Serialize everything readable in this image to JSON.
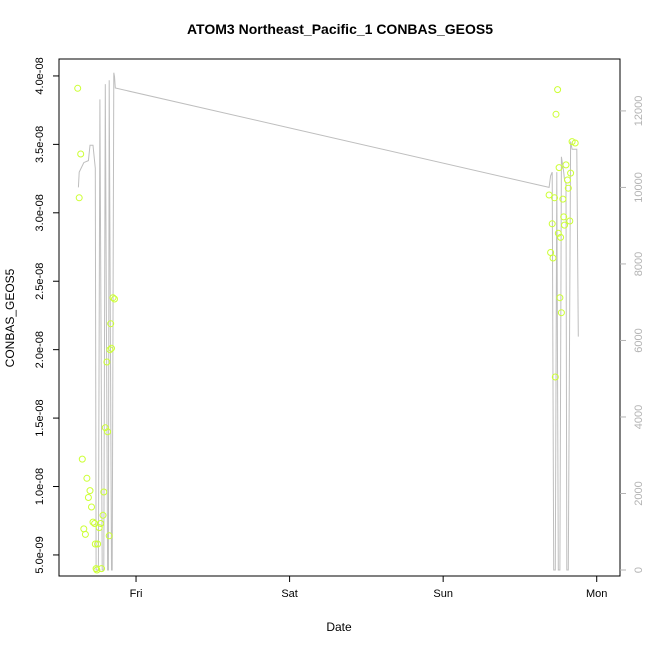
{
  "chart_data": {
    "type": "scatter",
    "title": "ATOM3 Northeast_Pacific_1 CONBAS_GEOS5",
    "xlabel": "Date",
    "ylabel": "CONBAS_GEOS5",
    "x_ticks": [
      {
        "label": "Fri",
        "day": 1
      },
      {
        "label": "Sat",
        "day": 2
      },
      {
        "label": "Sun",
        "day": 3
      },
      {
        "label": "Mon",
        "day": 4
      }
    ],
    "xlim": [
      0.57,
      4.08
    ],
    "y_left": {
      "ylim": [
        3.9e-09,
        4.08e-08
      ],
      "ticks": [
        5e-09,
        1e-08,
        1.5e-08,
        2e-08,
        2.5e-08,
        3e-08,
        3.5e-08,
        4e-08
      ],
      "tick_labels": [
        "5.0e-09",
        "1.0e-08",
        "1.5e-08",
        "2.0e-08",
        "2.5e-08",
        "3.0e-08",
        "3.5e-08",
        "4.0e-08"
      ]
    },
    "y_right": {
      "ylim": [
        0,
        13200
      ],
      "ticks": [
        0,
        2000,
        4000,
        6000,
        8000,
        10000,
        12000
      ],
      "tick_labels": [
        "0",
        "2000",
        "4000",
        "6000",
        "8000",
        "10000",
        "12000"
      ]
    },
    "colors": {
      "points": "#ccff33",
      "altitude_line": "#bebebe",
      "axes": "#000000",
      "right_axis": "#b3b3b3"
    },
    "series": [
      {
        "axis": "left",
        "marker": "open-circle",
        "points": [
          [
            0.62,
            3.91e-08
          ],
          [
            0.63,
            3.11e-08
          ],
          [
            0.64,
            3.43e-08
          ],
          [
            0.65,
            1.2e-08
          ],
          [
            0.66,
            6.9e-09
          ],
          [
            0.67,
            6.5e-09
          ],
          [
            0.68,
            1.06e-08
          ],
          [
            0.69,
            9.2e-09
          ],
          [
            0.7,
            9.7e-09
          ],
          [
            0.71,
            8.5e-09
          ],
          [
            0.72,
            7.4e-09
          ],
          [
            0.73,
            7.3e-09
          ],
          [
            0.735,
            5.8e-09
          ],
          [
            0.74,
            4e-09
          ],
          [
            0.745,
            3.9e-09
          ],
          [
            0.75,
            5.8e-09
          ],
          [
            0.76,
            7e-09
          ],
          [
            0.77,
            7.3e-09
          ],
          [
            0.775,
            4e-09
          ],
          [
            0.785,
            7.9e-09
          ],
          [
            0.79,
            9.6e-09
          ],
          [
            0.8,
            1.43e-08
          ],
          [
            0.81,
            1.91e-08
          ],
          [
            0.815,
            1.4e-08
          ],
          [
            0.825,
            6.4e-09
          ],
          [
            0.83,
            2e-08
          ],
          [
            0.835,
            2.19e-08
          ],
          [
            0.84,
            2.01e-08
          ],
          [
            0.85,
            2.38e-08
          ],
          [
            0.86,
            2.37e-08
          ],
          [
            3.69,
            3.13e-08
          ],
          [
            3.7,
            2.71e-08
          ],
          [
            3.71,
            2.92e-08
          ],
          [
            3.715,
            2.67e-08
          ],
          [
            3.725,
            3.11e-08
          ],
          [
            3.73,
            1.8e-08
          ],
          [
            3.735,
            3.72e-08
          ],
          [
            3.745,
            3.9e-08
          ],
          [
            3.75,
            2.85e-08
          ],
          [
            3.755,
            3.33e-08
          ],
          [
            3.76,
            2.38e-08
          ],
          [
            3.765,
            2.82e-08
          ],
          [
            3.77,
            2.27e-08
          ],
          [
            3.78,
            3.1e-08
          ],
          [
            3.785,
            2.97e-08
          ],
          [
            3.79,
            2.91e-08
          ],
          [
            3.8,
            3.35e-08
          ],
          [
            3.81,
            3.24e-08
          ],
          [
            3.815,
            3.18e-08
          ],
          [
            3.825,
            2.94e-08
          ],
          [
            3.83,
            3.29e-08
          ],
          [
            3.84,
            3.52e-08
          ],
          [
            3.86,
            3.51e-08
          ]
        ]
      },
      {
        "axis": "right",
        "marker": "line",
        "points": [
          [
            0.625,
            10000
          ],
          [
            0.63,
            10400
          ],
          [
            0.66,
            10650
          ],
          [
            0.69,
            10700
          ],
          [
            0.7,
            11100
          ],
          [
            0.72,
            11100
          ],
          [
            0.735,
            10500
          ],
          [
            0.74,
            0
          ],
          [
            0.755,
            0
          ],
          [
            0.765,
            12300
          ],
          [
            0.78,
            0
          ],
          [
            0.79,
            0
          ],
          [
            0.8,
            12700
          ],
          [
            0.815,
            0
          ],
          [
            0.82,
            0
          ],
          [
            0.825,
            12800
          ],
          [
            0.84,
            0
          ],
          [
            0.845,
            0
          ],
          [
            0.855,
            13000
          ],
          [
            0.86,
            12900
          ],
          [
            0.865,
            12600
          ],
          [
            3.69,
            10000
          ],
          [
            3.7,
            10300
          ],
          [
            3.71,
            10400
          ],
          [
            3.72,
            0
          ],
          [
            3.73,
            0
          ],
          [
            3.74,
            10400
          ],
          [
            3.75,
            0
          ],
          [
            3.76,
            0
          ],
          [
            3.77,
            10800
          ],
          [
            3.785,
            10400
          ],
          [
            3.79,
            10200
          ],
          [
            3.8,
            10100
          ],
          [
            3.805,
            0
          ],
          [
            3.815,
            0
          ],
          [
            3.83,
            11200
          ],
          [
            3.84,
            11000
          ],
          [
            3.87,
            11000
          ],
          [
            3.88,
            6100
          ]
        ]
      }
    ],
    "grid": false
  }
}
